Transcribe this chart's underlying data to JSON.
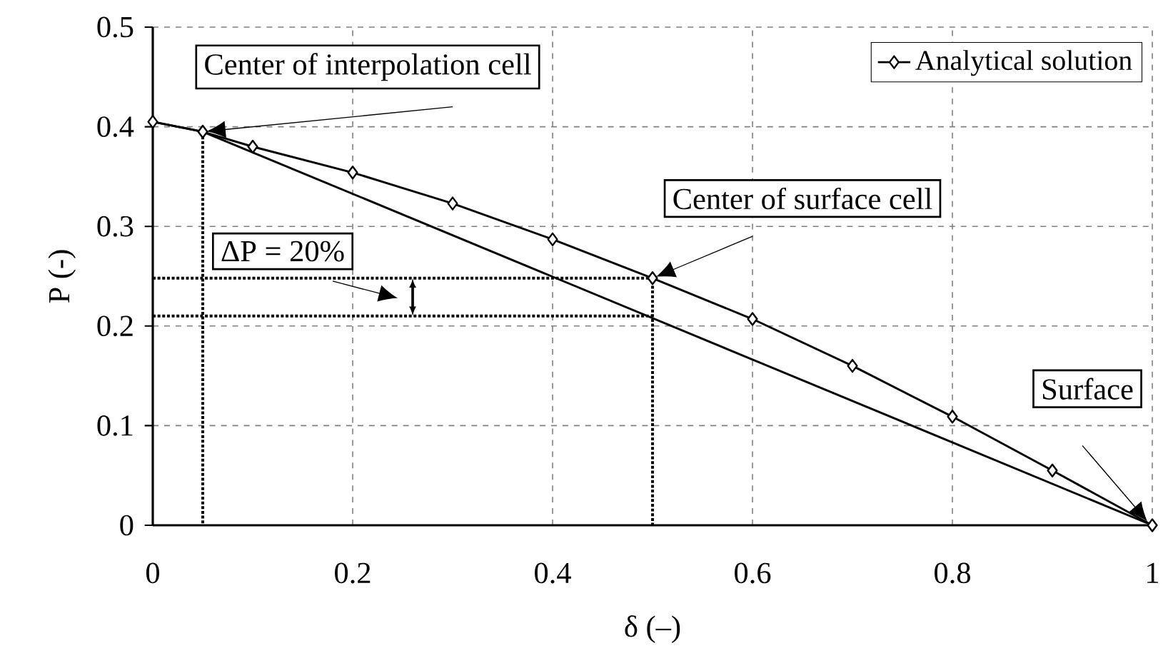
{
  "chart_data": {
    "type": "line",
    "xlabel": "δ (–)",
    "ylabel": "P (-)",
    "xlim": [
      0,
      1
    ],
    "ylim": [
      0,
      0.5
    ],
    "xticks": [
      0,
      0.2,
      0.4,
      0.6,
      0.8,
      1
    ],
    "yticks": [
      0,
      0.1,
      0.2,
      0.3,
      0.4,
      0.5
    ],
    "grid": true,
    "legend": "top right",
    "series": [
      {
        "name": "Analytical solution",
        "color": "#000000",
        "marker": "diamond",
        "line_style": "solid",
        "x": [
          0,
          0.05,
          0.1,
          0.2,
          0.3,
          0.4,
          0.5,
          0.6,
          0.7,
          0.8,
          0.9,
          1
        ],
        "values": [
          0.405,
          0.395,
          0.38,
          0.354,
          0.323,
          0.287,
          0.248,
          0.207,
          0.16,
          0.109,
          0.055,
          0
        ]
      },
      {
        "color": "#000000",
        "marker": "none",
        "line_style": "solid",
        "x": [
          0,
          0.05,
          1
        ],
        "values": [
          0.405,
          0.395,
          0
        ]
      },
      {
        "color": "#000000",
        "marker": "none",
        "line_style": "dotted",
        "x": [
          0,
          0.5,
          0.5
        ],
        "values": [
          0.248,
          0.248,
          0
        ]
      },
      {
        "color": "#000000",
        "marker": "none",
        "line_style": "dotted",
        "x": [
          0,
          0.5
        ],
        "values": [
          0.21,
          0.21
        ]
      },
      {
        "color": "#000000",
        "marker": "none",
        "line_style": "dotted",
        "x": [
          0.05,
          0.05
        ],
        "values": [
          0.395,
          0
        ]
      }
    ],
    "annotations": [
      {
        "text": "Center of interpolation cell",
        "x": 0.05,
        "y": 0.395
      },
      "ΔP = 20%",
      {
        "text": "Center of surface cell",
        "x": 0.5,
        "y": 0.248
      },
      "Surface"
    ]
  }
}
